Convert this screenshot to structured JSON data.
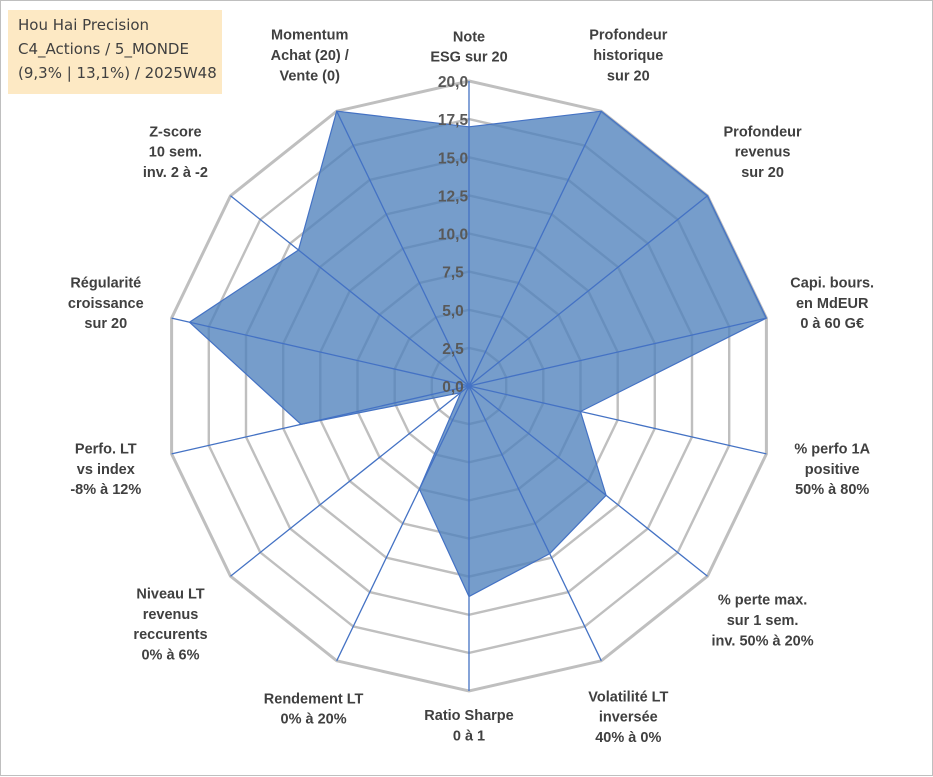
{
  "title_lines": [
    "Hou Hai Precision",
    "C4_Actions / 5_MONDE",
    "(9,3% | 13,1%) / 2025W48"
  ],
  "colors": {
    "fill": "#4f81bd",
    "line": "#4472c4",
    "grid": "#bfbfbf",
    "title_bg": "#fde9c4"
  },
  "chart_data": {
    "type": "radar",
    "rmin": 0,
    "rmax": 20,
    "ticks": [
      "0,0",
      "2,5",
      "5,0",
      "7,5",
      "10,0",
      "12,5",
      "15,0",
      "17,5",
      "20,0"
    ],
    "axes": [
      {
        "lines": [
          "Note",
          "ESG sur 20"
        ],
        "value": 17
      },
      {
        "lines": [
          "Profondeur",
          "historique",
          "sur 20"
        ],
        "value": 20
      },
      {
        "lines": [
          "Profondeur",
          "revenus",
          "sur 20"
        ],
        "value": 20
      },
      {
        "lines": [
          "Capi. bours.",
          "en MdEUR",
          "0 à 60 G€"
        ],
        "value": 20
      },
      {
        "lines": [
          "% perfo 1A",
          "positive",
          "50% à 80%"
        ],
        "value": 7.5
      },
      {
        "lines": [
          "% perte max.",
          "sur 1 sem.",
          "inv. 50% à 20%"
        ],
        "value": 11.5
      },
      {
        "lines": [
          "Volatilité LT",
          "inversée",
          "40% à 0%"
        ],
        "value": 12.2
      },
      {
        "lines": [
          "Ratio Sharpe",
          "0 à 1"
        ],
        "value": 13.8
      },
      {
        "lines": [
          "Rendement LT",
          "0% à 20%"
        ],
        "value": 7.5
      },
      {
        "lines": [
          "Niveau LT",
          "revenus",
          "reccurents",
          "0% à 6%"
        ],
        "value": 0.7
      },
      {
        "lines": [
          "Perfo. LT",
          "vs index",
          "-8% à 12%"
        ],
        "value": 11.3
      },
      {
        "lines": [
          "Régularité",
          "croissance",
          "sur 20"
        ],
        "value": 18.8
      },
      {
        "lines": [
          "Z-score",
          "10 sem.",
          "inv. 2 à -2"
        ],
        "value": 14.3
      },
      {
        "lines": [
          "Momentum",
          "Achat (20) /",
          "Vente (0)"
        ],
        "value": 20
      }
    ]
  }
}
